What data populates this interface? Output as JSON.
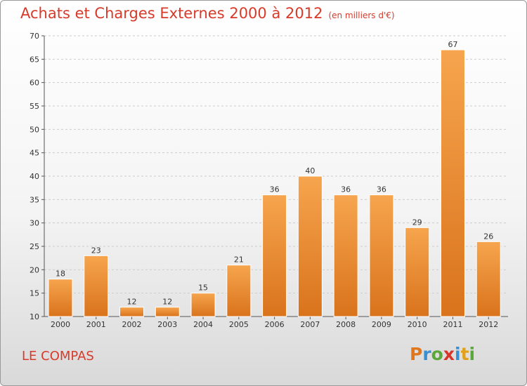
{
  "title": "Achats et Charges Externes 2000 à 2012",
  "subtitle": "(en milliers d'€)",
  "footer_label": "LE COMPAS",
  "brand": {
    "letters": [
      "P",
      "r",
      "o",
      "x",
      "i",
      "t",
      "i"
    ],
    "colors": [
      "#e2761b",
      "#3a8fd0",
      "#5aa83a",
      "#d8352a",
      "#3a8fd0",
      "#e2a11b",
      "#5aa83a"
    ]
  },
  "colors": {
    "bar_light": "#f6a54e",
    "bar_dark": "#d9731c",
    "title": "#d83a2a"
  },
  "chart_data": {
    "type": "bar",
    "title": "Achats et Charges Externes 2000 à 2012",
    "subtitle": "(en milliers d'€)",
    "categories": [
      "2000",
      "2001",
      "2002",
      "2003",
      "2004",
      "2005",
      "2006",
      "2007",
      "2008",
      "2009",
      "2010",
      "2011",
      "2012"
    ],
    "values": [
      18,
      23,
      12,
      12,
      15,
      21,
      36,
      40,
      36,
      36,
      29,
      67,
      26
    ],
    "ylim": [
      10,
      70
    ],
    "yticks": [
      10,
      15,
      20,
      25,
      30,
      35,
      40,
      45,
      50,
      55,
      60,
      65,
      70
    ],
    "grid": true,
    "xlabel": "",
    "ylabel": ""
  }
}
